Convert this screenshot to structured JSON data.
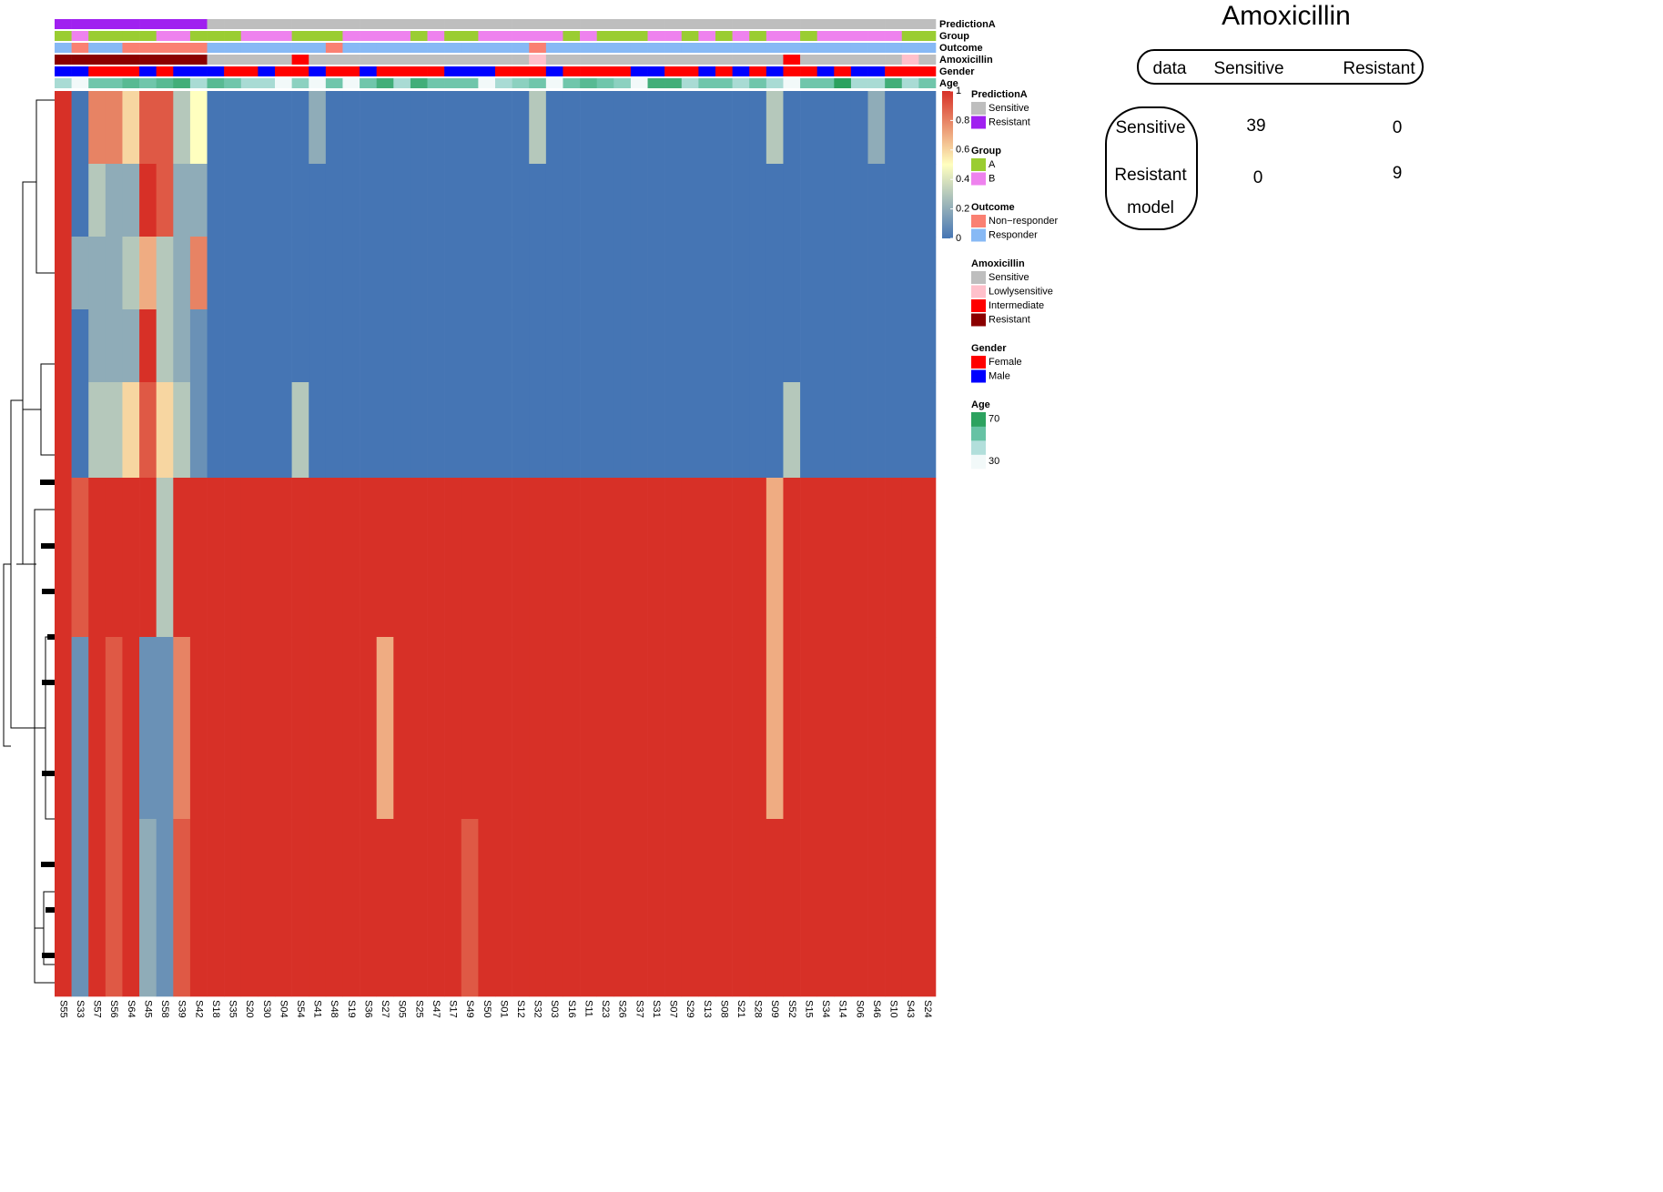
{
  "chart_data": {
    "type": "heatmap",
    "samples": [
      "S55",
      "S33",
      "S57",
      "S56",
      "S64",
      "S45",
      "S58",
      "S39",
      "S42",
      "S18",
      "S35",
      "S20",
      "S30",
      "S04",
      "S54",
      "S41",
      "S48",
      "S19",
      "S36",
      "S27",
      "S05",
      "S25",
      "S47",
      "S17",
      "S49",
      "S50",
      "S01",
      "S12",
      "S32",
      "S03",
      "S16",
      "S11",
      "S23",
      "S26",
      "S37",
      "S31",
      "S07",
      "S29",
      "S13",
      "S08",
      "S21",
      "S28",
      "S09",
      "S52",
      "S15",
      "S34",
      "S14",
      "S06",
      "S46",
      "S10",
      "S43",
      "S24"
    ],
    "tracks": [
      {
        "name": "PredictionA",
        "levels": [
          "Sensitive",
          "Resistant"
        ],
        "colors": [
          "#bebebe",
          "#a020f0"
        ],
        "values": [
          1,
          1,
          1,
          1,
          1,
          1,
          1,
          1,
          1,
          0,
          0,
          0,
          0,
          0,
          0,
          0,
          0,
          0,
          0,
          0,
          0,
          0,
          0,
          0,
          0,
          0,
          0,
          0,
          0,
          0,
          0,
          0,
          0,
          0,
          0,
          0,
          0,
          0,
          0,
          0,
          0,
          0,
          0,
          0,
          0,
          0,
          0,
          0,
          0,
          0,
          0,
          0
        ]
      },
      {
        "name": "Group",
        "levels": [
          "A",
          "B"
        ],
        "colors": [
          "#9acd32",
          "#ee82ee"
        ],
        "values": [
          0,
          1,
          0,
          0,
          0,
          0,
          1,
          1,
          0,
          0,
          0,
          1,
          1,
          1,
          0,
          0,
          0,
          1,
          1,
          1,
          1,
          0,
          1,
          0,
          0,
          1,
          1,
          1,
          1,
          1,
          0,
          1,
          0,
          0,
          0,
          1,
          1,
          0,
          1,
          0,
          1,
          0,
          1,
          1,
          0,
          1,
          1,
          1,
          1,
          1,
          0,
          0
        ]
      },
      {
        "name": "Outcome",
        "levels": [
          "Non−responder",
          "Responder"
        ],
        "colors": [
          "#fa8072",
          "#87b9f5"
        ],
        "values": [
          1,
          0,
          1,
          1,
          0,
          0,
          0,
          0,
          0,
          1,
          1,
          1,
          1,
          1,
          1,
          1,
          0,
          1,
          1,
          1,
          1,
          1,
          1,
          1,
          1,
          1,
          1,
          1,
          0,
          1,
          1,
          1,
          1,
          1,
          1,
          1,
          1,
          1,
          1,
          1,
          1,
          1,
          1,
          1,
          1,
          1,
          1,
          1,
          1,
          1,
          1,
          1
        ]
      },
      {
        "name": "Amoxicillin",
        "levels": [
          "Sensitive",
          "Lowlysensitive",
          "Intermediate",
          "Resistant"
        ],
        "colors": [
          "#bebebe",
          "#ffc0cb",
          "#ff0000",
          "#8b0000"
        ],
        "values": [
          3,
          3,
          3,
          3,
          3,
          3,
          3,
          3,
          3,
          0,
          0,
          0,
          0,
          0,
          2,
          0,
          0,
          0,
          0,
          0,
          0,
          0,
          0,
          0,
          0,
          0,
          0,
          0,
          1,
          0,
          0,
          0,
          0,
          0,
          0,
          0,
          0,
          0,
          0,
          0,
          0,
          0,
          0,
          2,
          0,
          0,
          0,
          0,
          0,
          0,
          1,
          0
        ]
      },
      {
        "name": "Gender",
        "levels": [
          "Female",
          "Male"
        ],
        "colors": [
          "#ff0000",
          "#0000ff"
        ],
        "values": [
          1,
          1,
          0,
          0,
          0,
          1,
          0,
          1,
          1,
          1,
          0,
          0,
          1,
          0,
          0,
          1,
          0,
          0,
          1,
          0,
          0,
          0,
          0,
          1,
          1,
          1,
          0,
          0,
          0,
          1,
          0,
          0,
          0,
          0,
          1,
          1,
          0,
          0,
          1,
          0,
          1,
          0,
          1,
          0,
          0,
          1,
          0,
          1,
          1,
          0,
          0,
          0
        ]
      },
      {
        "name": "Age",
        "lim": [
          30,
          70
        ],
        "ticks": [
          70,
          30
        ],
        "colors": [
          "#f2f9f9",
          "#b2dfdb",
          "#66c2a4",
          "#2ca25f"
        ],
        "values": [
          45,
          30,
          55,
          55,
          60,
          55,
          60,
          65,
          45,
          60,
          55,
          45,
          45,
          30,
          50,
          30,
          55,
          30,
          55,
          65,
          45,
          65,
          55,
          55,
          55,
          30,
          45,
          50,
          55,
          30,
          55,
          60,
          55,
          50,
          30,
          65,
          65,
          45,
          55,
          55,
          45,
          55,
          45,
          30,
          55,
          55,
          70,
          45,
          45,
          65,
          45,
          55
        ]
      }
    ],
    "zlim": [
      0,
      1
    ],
    "zticks": [
      0,
      0.2,
      0.4,
      0.6,
      0.8,
      1
    ],
    "zcolors": [
      "#4575b4",
      "#ffffbf",
      "#d73027"
    ],
    "matrix": [
      [
        1,
        0,
        0.8,
        0.8,
        0.6,
        0.9,
        0.9,
        0.3,
        0.5,
        0,
        0,
        0,
        0,
        0,
        0,
        0.2,
        0,
        0,
        0,
        0,
        0,
        0,
        0,
        0,
        0,
        0,
        0,
        0,
        0.3,
        0,
        0,
        0,
        0,
        0,
        0,
        0,
        0,
        0,
        0,
        0,
        0,
        0,
        0.3,
        0,
        0,
        0,
        0,
        0,
        0.2,
        0,
        0,
        0
      ],
      [
        1,
        0,
        0.3,
        0.2,
        0.2,
        1,
        0.9,
        0.2,
        0.2,
        0,
        0,
        0,
        0,
        0,
        0,
        0,
        0,
        0,
        0,
        0,
        0,
        0,
        0,
        0,
        0,
        0,
        0,
        0,
        0,
        0,
        0,
        0,
        0,
        0,
        0,
        0,
        0,
        0,
        0,
        0,
        0,
        0,
        0,
        0,
        0,
        0,
        0,
        0,
        0,
        0,
        0,
        0
      ],
      [
        1,
        0.2,
        0.2,
        0.2,
        0.3,
        0.7,
        0.3,
        0.2,
        0.8,
        0,
        0,
        0,
        0,
        0,
        0,
        0,
        0,
        0,
        0,
        0,
        0,
        0,
        0,
        0,
        0,
        0,
        0,
        0,
        0,
        0,
        0,
        0,
        0,
        0,
        0,
        0,
        0,
        0,
        0,
        0,
        0,
        0,
        0,
        0,
        0,
        0,
        0,
        0,
        0,
        0,
        0,
        0
      ],
      [
        1,
        0,
        0.2,
        0.2,
        0.2,
        1,
        0.3,
        0.2,
        0.1,
        0,
        0,
        0,
        0,
        0,
        0,
        0,
        0,
        0,
        0,
        0,
        0,
        0,
        0,
        0,
        0,
        0,
        0,
        0,
        0,
        0,
        0,
        0,
        0,
        0,
        0,
        0,
        0,
        0,
        0,
        0,
        0,
        0,
        0,
        0,
        0,
        0,
        0,
        0,
        0,
        0,
        0,
        0
      ],
      [
        1,
        0,
        0.3,
        0.3,
        0.6,
        0.9,
        0.6,
        0.3,
        0.1,
        0,
        0,
        0,
        0,
        0,
        0.3,
        0,
        0,
        0,
        0,
        0,
        0,
        0,
        0,
        0,
        0,
        0,
        0,
        0,
        0,
        0,
        0,
        0,
        0,
        0,
        0,
        0,
        0,
        0,
        0,
        0,
        0,
        0,
        0,
        0.3,
        0,
        0,
        0,
        0,
        0,
        0,
        0,
        0
      ],
      [
        1,
        0.9,
        1,
        1,
        1,
        1,
        0.3,
        1,
        1,
        1,
        1,
        1,
        1,
        1,
        1,
        1,
        1,
        1,
        1,
        1,
        1,
        1,
        1,
        1,
        1,
        1,
        1,
        1,
        1,
        1,
        1,
        1,
        1,
        1,
        1,
        1,
        1,
        1,
        1,
        1,
        1,
        1,
        0.7,
        1,
        1,
        1,
        1,
        1,
        1,
        1,
        1,
        1
      ],
      [
        1,
        0.1,
        1,
        0.9,
        1,
        0.1,
        0.1,
        0.8,
        1,
        1,
        1,
        1,
        1,
        1,
        1,
        1,
        1,
        1,
        1,
        0.7,
        1,
        1,
        1,
        1,
        1,
        1,
        1,
        1,
        1,
        1,
        1,
        1,
        1,
        1,
        1,
        1,
        1,
        1,
        1,
        1,
        1,
        1,
        0.7,
        1,
        1,
        1,
        1,
        1,
        1,
        1,
        1,
        1
      ],
      [
        1,
        0.1,
        1,
        0.9,
        1,
        0.2,
        0.1,
        0.9,
        1,
        1,
        1,
        1,
        1,
        1,
        1,
        1,
        1,
        1,
        1,
        1,
        1,
        1,
        1,
        1,
        0.9,
        1,
        1,
        1,
        1,
        1,
        1,
        1,
        1,
        1,
        1,
        1,
        1,
        1,
        1,
        1,
        1,
        1,
        1,
        1,
        1,
        1,
        1,
        1,
        1,
        1,
        1,
        1
      ]
    ]
  },
  "confusion": {
    "title": "Amoxicillin",
    "corner": "data",
    "columns": [
      "Sensitive",
      "Resistant"
    ],
    "rows": [
      "Sensitive",
      "Resistant"
    ],
    "row_title": "model",
    "values": [
      [
        39,
        0
      ],
      [
        0,
        9
      ]
    ]
  }
}
